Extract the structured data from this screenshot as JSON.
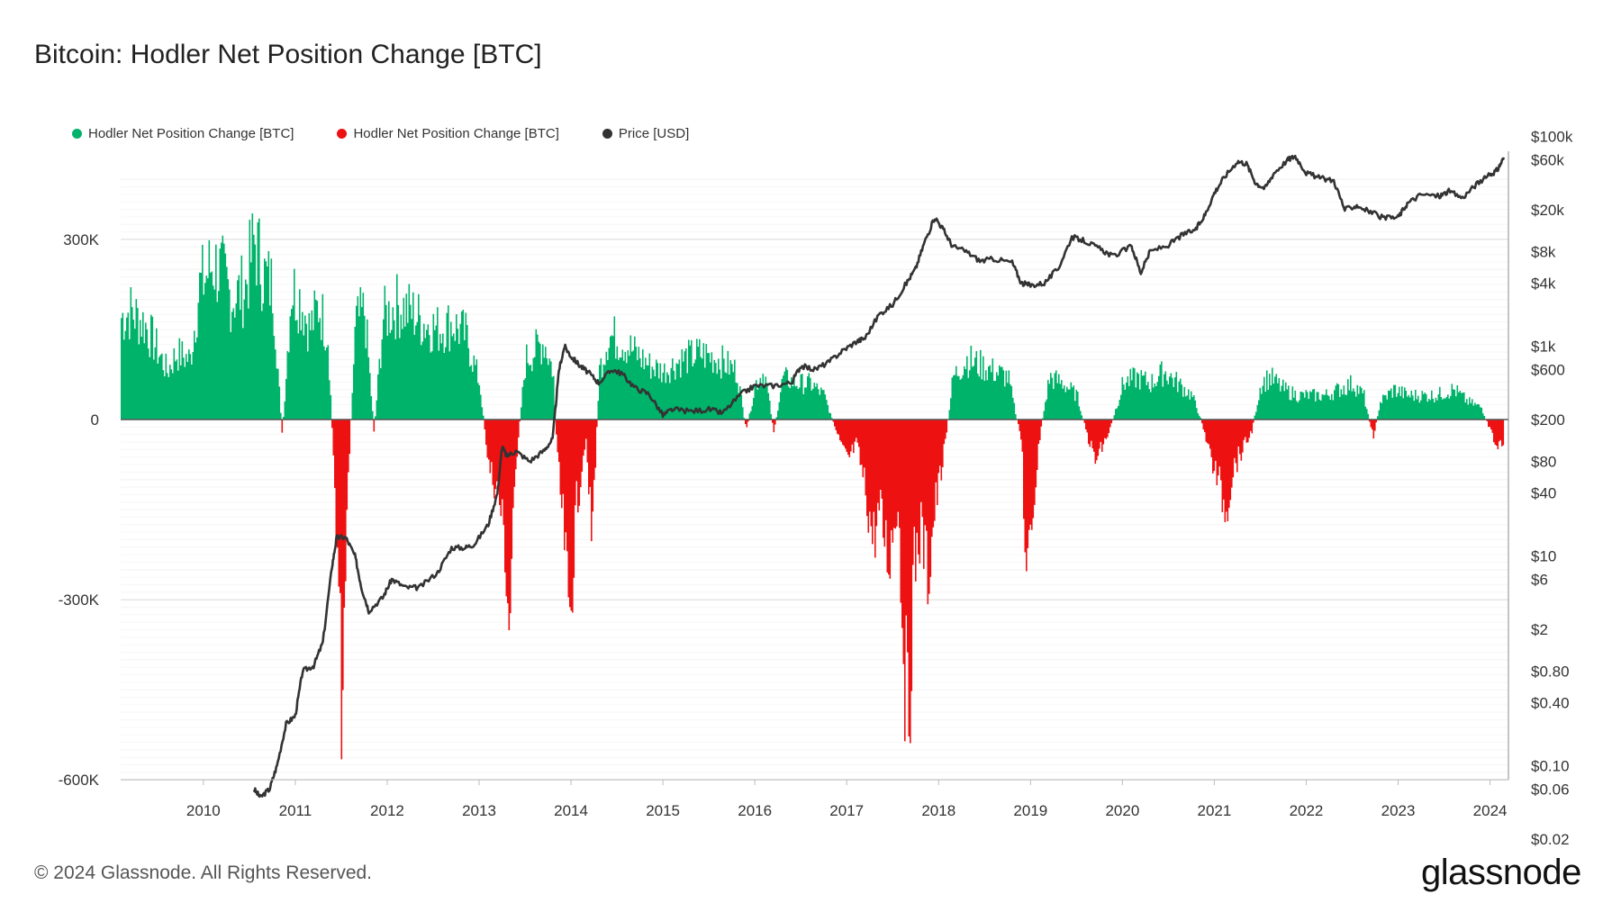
{
  "header": {
    "title": "Bitcoin: Hodler Net Position Change [BTC]"
  },
  "legend": [
    {
      "label": "Hodler Net Position Change [BTC]",
      "color": "#00b36b"
    },
    {
      "label": "Hodler Net Position Change [BTC]",
      "color": "#ee1111"
    },
    {
      "label": "Price [USD]",
      "color": "#333333"
    }
  ],
  "footer": {
    "copyright": "© 2024 Glassnode. All Rights Reserved.",
    "brand": "glassnode"
  },
  "chart_data": {
    "type": "area",
    "grid": true,
    "x_range": [
      2009.1,
      2024.2
    ],
    "x_ticks": [
      "2010",
      "2011",
      "2012",
      "2013",
      "2014",
      "2015",
      "2016",
      "2017",
      "2018",
      "2019",
      "2020",
      "2021",
      "2022",
      "2023",
      "2024"
    ],
    "y_left": {
      "range": [
        -600000,
        400000
      ],
      "ticks": [
        {
          "v": 300000,
          "label": "300K"
        },
        {
          "v": 0,
          "label": "0"
        },
        {
          "v": -300000,
          "label": "-300K"
        },
        {
          "v": -600000,
          "label": "-600K"
        }
      ]
    },
    "y_right": {
      "scale": "log",
      "range": [
        0.02,
        100000
      ],
      "ticks": [
        {
          "v": 100000,
          "label": "$100k"
        },
        {
          "v": 60000,
          "label": "$60k"
        },
        {
          "v": 20000,
          "label": "$20k"
        },
        {
          "v": 8000,
          "label": "$8k"
        },
        {
          "v": 4000,
          "label": "$4k"
        },
        {
          "v": 1000,
          "label": "$1k"
        },
        {
          "v": 600,
          "label": "$600"
        },
        {
          "v": 200,
          "label": "$200"
        },
        {
          "v": 80,
          "label": "$80"
        },
        {
          "v": 40,
          "label": "$40"
        },
        {
          "v": 10,
          "label": "$10"
        },
        {
          "v": 6,
          "label": "$6"
        },
        {
          "v": 2,
          "label": "$2"
        },
        {
          "v": 0.8,
          "label": "$0.80"
        },
        {
          "v": 0.4,
          "label": "$0.40"
        },
        {
          "v": 0.1,
          "label": "$0.10"
        },
        {
          "v": 0.06,
          "label": "$0.06"
        },
        {
          "v": 0.02,
          "label": "$0.02"
        }
      ]
    },
    "series": [
      {
        "name": "Hodler Net Position Change [BTC]",
        "axis": "left",
        "color_positive": "#00b36b",
        "color_negative": "#ee1111",
        "points": [
          [
            2009.1,
            170000
          ],
          [
            2009.2,
            180000
          ],
          [
            2009.35,
            160000
          ],
          [
            2009.45,
            130000
          ],
          [
            2009.6,
            80000
          ],
          [
            2009.7,
            110000
          ],
          [
            2009.85,
            100000
          ],
          [
            2009.95,
            220000
          ],
          [
            2010.1,
            260000
          ],
          [
            2010.2,
            240000
          ],
          [
            2010.3,
            200000
          ],
          [
            2010.45,
            220000
          ],
          [
            2010.55,
            300000
          ],
          [
            2010.65,
            240000
          ],
          [
            2010.75,
            220000
          ],
          [
            2010.85,
            -30000
          ],
          [
            2010.95,
            220000
          ],
          [
            2011.05,
            200000
          ],
          [
            2011.15,
            150000
          ],
          [
            2011.25,
            190000
          ],
          [
            2011.35,
            140000
          ],
          [
            2011.4,
            -40000
          ],
          [
            2011.45,
            -200000
          ],
          [
            2011.5,
            -480000
          ],
          [
            2011.55,
            -150000
          ],
          [
            2011.65,
            160000
          ],
          [
            2011.75,
            180000
          ],
          [
            2011.85,
            -20000
          ],
          [
            2011.95,
            170000
          ],
          [
            2012.1,
            190000
          ],
          [
            2012.25,
            180000
          ],
          [
            2012.4,
            160000
          ],
          [
            2012.55,
            150000
          ],
          [
            2012.7,
            160000
          ],
          [
            2012.85,
            140000
          ],
          [
            2013.0,
            60000
          ],
          [
            2013.1,
            -80000
          ],
          [
            2013.2,
            -120000
          ],
          [
            2013.27,
            -200000
          ],
          [
            2013.32,
            -350000
          ],
          [
            2013.4,
            -60000
          ],
          [
            2013.5,
            100000
          ],
          [
            2013.7,
            130000
          ],
          [
            2013.8,
            80000
          ],
          [
            2013.85,
            -80000
          ],
          [
            2013.92,
            -200000
          ],
          [
            2013.97,
            -350000
          ],
          [
            2014.05,
            -150000
          ],
          [
            2014.15,
            -30000
          ],
          [
            2014.22,
            -200000
          ],
          [
            2014.3,
            80000
          ],
          [
            2014.4,
            140000
          ],
          [
            2014.55,
            130000
          ],
          [
            2014.7,
            110000
          ],
          [
            2014.85,
            90000
          ],
          [
            2015.0,
            80000
          ],
          [
            2015.2,
            100000
          ],
          [
            2015.4,
            110000
          ],
          [
            2015.6,
            100000
          ],
          [
            2015.8,
            80000
          ],
          [
            2015.9,
            -20000
          ],
          [
            2016.0,
            60000
          ],
          [
            2016.1,
            80000
          ],
          [
            2016.2,
            -20000
          ],
          [
            2016.3,
            70000
          ],
          [
            2016.45,
            60000
          ],
          [
            2016.6,
            60000
          ],
          [
            2016.75,
            40000
          ],
          [
            2016.9,
            -30000
          ],
          [
            2017.0,
            -70000
          ],
          [
            2017.1,
            -40000
          ],
          [
            2017.2,
            -120000
          ],
          [
            2017.28,
            -200000
          ],
          [
            2017.35,
            -150000
          ],
          [
            2017.45,
            -230000
          ],
          [
            2017.55,
            -130000
          ],
          [
            2017.62,
            -400000
          ],
          [
            2017.66,
            -530000
          ],
          [
            2017.72,
            -250000
          ],
          [
            2017.8,
            -180000
          ],
          [
            2017.88,
            -260000
          ],
          [
            2017.95,
            -150000
          ],
          [
            2018.05,
            -60000
          ],
          [
            2018.15,
            70000
          ],
          [
            2018.3,
            100000
          ],
          [
            2018.45,
            90000
          ],
          [
            2018.6,
            80000
          ],
          [
            2018.75,
            70000
          ],
          [
            2018.9,
            -40000
          ],
          [
            2018.95,
            -300000
          ],
          [
            2019.0,
            -180000
          ],
          [
            2019.1,
            -20000
          ],
          [
            2019.2,
            70000
          ],
          [
            2019.35,
            60000
          ],
          [
            2019.5,
            40000
          ],
          [
            2019.6,
            -20000
          ],
          [
            2019.7,
            -70000
          ],
          [
            2019.85,
            -20000
          ],
          [
            2020.0,
            60000
          ],
          [
            2020.15,
            70000
          ],
          [
            2020.3,
            60000
          ],
          [
            2020.45,
            80000
          ],
          [
            2020.6,
            60000
          ],
          [
            2020.75,
            40000
          ],
          [
            2020.85,
            0
          ],
          [
            2020.95,
            -60000
          ],
          [
            2021.05,
            -110000
          ],
          [
            2021.12,
            -150000
          ],
          [
            2021.2,
            -80000
          ],
          [
            2021.3,
            -50000
          ],
          [
            2021.4,
            -20000
          ],
          [
            2021.5,
            60000
          ],
          [
            2021.6,
            70000
          ],
          [
            2021.75,
            50000
          ],
          [
            2021.9,
            40000
          ],
          [
            2022.05,
            40000
          ],
          [
            2022.2,
            40000
          ],
          [
            2022.35,
            50000
          ],
          [
            2022.5,
            60000
          ],
          [
            2022.62,
            40000
          ],
          [
            2022.72,
            -30000
          ],
          [
            2022.8,
            30000
          ],
          [
            2022.95,
            50000
          ],
          [
            2023.1,
            40000
          ],
          [
            2023.25,
            40000
          ],
          [
            2023.4,
            40000
          ],
          [
            2023.6,
            50000
          ],
          [
            2023.75,
            30000
          ],
          [
            2023.9,
            20000
          ],
          [
            2024.0,
            -20000
          ],
          [
            2024.08,
            -50000
          ],
          [
            2024.15,
            -30000
          ]
        ]
      },
      {
        "name": "Price [USD]",
        "axis": "right",
        "color": "#333333",
        "points": [
          [
            2010.55,
            0.06
          ],
          [
            2010.62,
            0.05
          ],
          [
            2010.72,
            0.06
          ],
          [
            2010.8,
            0.1
          ],
          [
            2010.9,
            0.25
          ],
          [
            2011.0,
            0.3
          ],
          [
            2011.08,
            0.8
          ],
          [
            2011.2,
            0.9
          ],
          [
            2011.3,
            1.5
          ],
          [
            2011.4,
            8
          ],
          [
            2011.45,
            15
          ],
          [
            2011.55,
            15
          ],
          [
            2011.65,
            10
          ],
          [
            2011.72,
            5
          ],
          [
            2011.8,
            3
          ],
          [
            2011.95,
            4
          ],
          [
            2012.05,
            6
          ],
          [
            2012.2,
            5
          ],
          [
            2012.35,
            5
          ],
          [
            2012.55,
            7
          ],
          [
            2012.7,
            12
          ],
          [
            2012.85,
            12
          ],
          [
            2012.95,
            13
          ],
          [
            2013.1,
            20
          ],
          [
            2013.2,
            40
          ],
          [
            2013.25,
            110
          ],
          [
            2013.3,
            90
          ],
          [
            2013.4,
            100
          ],
          [
            2013.55,
            80
          ],
          [
            2013.7,
            100
          ],
          [
            2013.8,
            130
          ],
          [
            2013.87,
            600
          ],
          [
            2013.93,
            1000
          ],
          [
            2014.0,
            800
          ],
          [
            2014.1,
            650
          ],
          [
            2014.2,
            550
          ],
          [
            2014.3,
            450
          ],
          [
            2014.45,
            600
          ],
          [
            2014.55,
            550
          ],
          [
            2014.7,
            400
          ],
          [
            2014.85,
            350
          ],
          [
            2015.0,
            220
          ],
          [
            2015.1,
            250
          ],
          [
            2015.3,
            240
          ],
          [
            2015.5,
            250
          ],
          [
            2015.65,
            230
          ],
          [
            2015.85,
            350
          ],
          [
            2016.0,
            420
          ],
          [
            2016.2,
            420
          ],
          [
            2016.4,
            450
          ],
          [
            2016.5,
            650
          ],
          [
            2016.65,
            600
          ],
          [
            2016.8,
            700
          ],
          [
            2016.95,
            900
          ],
          [
            2017.1,
            1100
          ],
          [
            2017.2,
            1200
          ],
          [
            2017.35,
            2000
          ],
          [
            2017.5,
            2500
          ],
          [
            2017.65,
            4000
          ],
          [
            2017.75,
            5500
          ],
          [
            2017.85,
            10000
          ],
          [
            2017.96,
            17000
          ],
          [
            2018.05,
            13000
          ],
          [
            2018.15,
            9000
          ],
          [
            2018.3,
            8000
          ],
          [
            2018.45,
            6500
          ],
          [
            2018.6,
            6800
          ],
          [
            2018.8,
            6300
          ],
          [
            2018.9,
            4000
          ],
          [
            2019.0,
            3800
          ],
          [
            2019.15,
            4000
          ],
          [
            2019.3,
            5500
          ],
          [
            2019.45,
            11000
          ],
          [
            2019.6,
            10000
          ],
          [
            2019.75,
            8500
          ],
          [
            2019.9,
            7200
          ],
          [
            2020.1,
            9000
          ],
          [
            2020.2,
            5000
          ],
          [
            2020.3,
            8000
          ],
          [
            2020.5,
            9200
          ],
          [
            2020.65,
            11500
          ],
          [
            2020.8,
            13000
          ],
          [
            2020.9,
            18000
          ],
          [
            2021.0,
            29000
          ],
          [
            2021.1,
            40000
          ],
          [
            2021.25,
            58000
          ],
          [
            2021.35,
            55000
          ],
          [
            2021.45,
            36000
          ],
          [
            2021.55,
            32000
          ],
          [
            2021.65,
            45000
          ],
          [
            2021.8,
            60000
          ],
          [
            2021.88,
            65000
          ],
          [
            2022.0,
            45000
          ],
          [
            2022.15,
            40000
          ],
          [
            2022.3,
            38000
          ],
          [
            2022.42,
            20000
          ],
          [
            2022.55,
            22000
          ],
          [
            2022.7,
            19000
          ],
          [
            2022.85,
            16500
          ],
          [
            2023.0,
            17000
          ],
          [
            2023.1,
            23000
          ],
          [
            2023.25,
            28000
          ],
          [
            2023.45,
            27000
          ],
          [
            2023.55,
            30000
          ],
          [
            2023.7,
            26000
          ],
          [
            2023.85,
            35000
          ],
          [
            2024.0,
            43000
          ],
          [
            2024.08,
            48000
          ],
          [
            2024.15,
            63000
          ]
        ]
      }
    ]
  }
}
